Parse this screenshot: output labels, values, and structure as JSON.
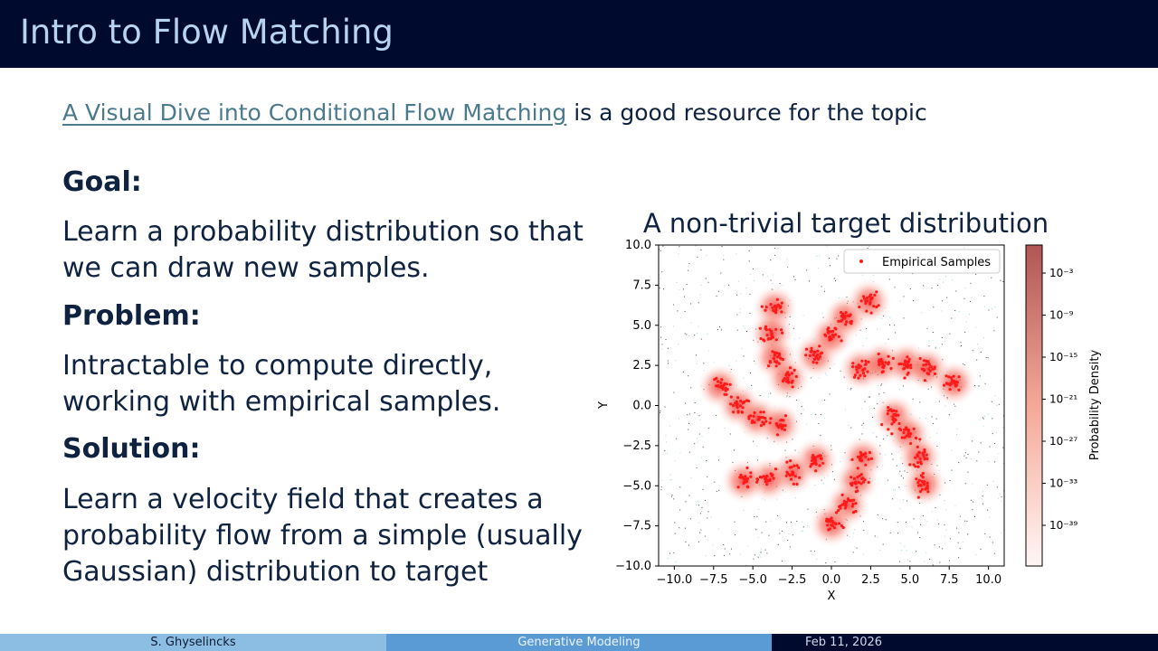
{
  "header": {
    "title": "Intro to Flow Matching"
  },
  "resource": {
    "link_text": "A Visual Dive into Conditional Flow Matching",
    "rest_text": " is a good resource for the topic"
  },
  "sections": {
    "goal_heading": "Goal:",
    "goal_line1": "Learn a probability distribution so that",
    "goal_line2": "we can draw new samples.",
    "problem_heading": "Problem:",
    "problem_line1": "Intractable to compute directly,",
    "problem_line2": "working with empirical samples.",
    "solution_heading": "Solution:",
    "solution_line1": "Learn a velocity field that creates a",
    "solution_line2": "probability flow from a simple (usually",
    "solution_line3": "Gaussian) distribution to target"
  },
  "chart_data": {
    "type": "scatter",
    "title": "A non-trivial target distribution",
    "xlabel": "X",
    "ylabel": "Y",
    "xlim": [
      -11,
      11
    ],
    "ylim": [
      -10,
      10
    ],
    "xticks": [
      "−10.0",
      "−7.5",
      "−5.0",
      "−2.5",
      "0.0",
      "2.5",
      "5.0",
      "7.5",
      "10.0"
    ],
    "yticks": [
      "−10.0",
      "−7.5",
      "−5.0",
      "−2.5",
      "0.0",
      "2.5",
      "5.0",
      "7.5",
      "10.0"
    ],
    "legend": {
      "label": "Empirical Samples",
      "placement": "top-right"
    },
    "colorbar": {
      "label": "Probability Density",
      "scale": "log",
      "ticks": [
        "10⁻³",
        "10⁻⁹",
        "10⁻¹⁵",
        "10⁻²¹",
        "10⁻²⁷",
        "10⁻³³",
        "10⁻³⁹"
      ]
    },
    "sample_color": "#ff1a1a",
    "clusters": [
      {
        "x": -3.6,
        "y": 6.1
      },
      {
        "x": -3.8,
        "y": 4.5
      },
      {
        "x": -3.6,
        "y": 3.0
      },
      {
        "x": -2.8,
        "y": 1.7
      },
      {
        "x": -7.1,
        "y": 1.2
      },
      {
        "x": -5.9,
        "y": 0.0
      },
      {
        "x": -4.7,
        "y": -0.8
      },
      {
        "x": -3.3,
        "y": -1.2
      },
      {
        "x": -1.0,
        "y": 3.1
      },
      {
        "x": 0.0,
        "y": 4.3
      },
      {
        "x": 0.9,
        "y": 5.5
      },
      {
        "x": 2.4,
        "y": 6.5
      },
      {
        "x": 1.9,
        "y": 2.3
      },
      {
        "x": 3.2,
        "y": 2.6
      },
      {
        "x": 4.8,
        "y": 2.6
      },
      {
        "x": 6.1,
        "y": 2.3
      },
      {
        "x": 7.8,
        "y": 1.4
      },
      {
        "x": 4.0,
        "y": -0.7
      },
      {
        "x": 4.9,
        "y": -1.8
      },
      {
        "x": 5.6,
        "y": -3.2
      },
      {
        "x": 5.9,
        "y": -4.9
      },
      {
        "x": 2.0,
        "y": -3.3
      },
      {
        "x": 1.6,
        "y": -4.7
      },
      {
        "x": 1.0,
        "y": -6.2
      },
      {
        "x": 0.0,
        "y": -7.4
      },
      {
        "x": -1.0,
        "y": -3.4
      },
      {
        "x": -2.5,
        "y": -4.2
      },
      {
        "x": -4.0,
        "y": -4.6
      },
      {
        "x": -5.6,
        "y": -4.7
      }
    ]
  },
  "footer": {
    "author": "S. Ghyselincks",
    "topic": "Generative Modeling",
    "date": "Feb 11, 2026"
  }
}
